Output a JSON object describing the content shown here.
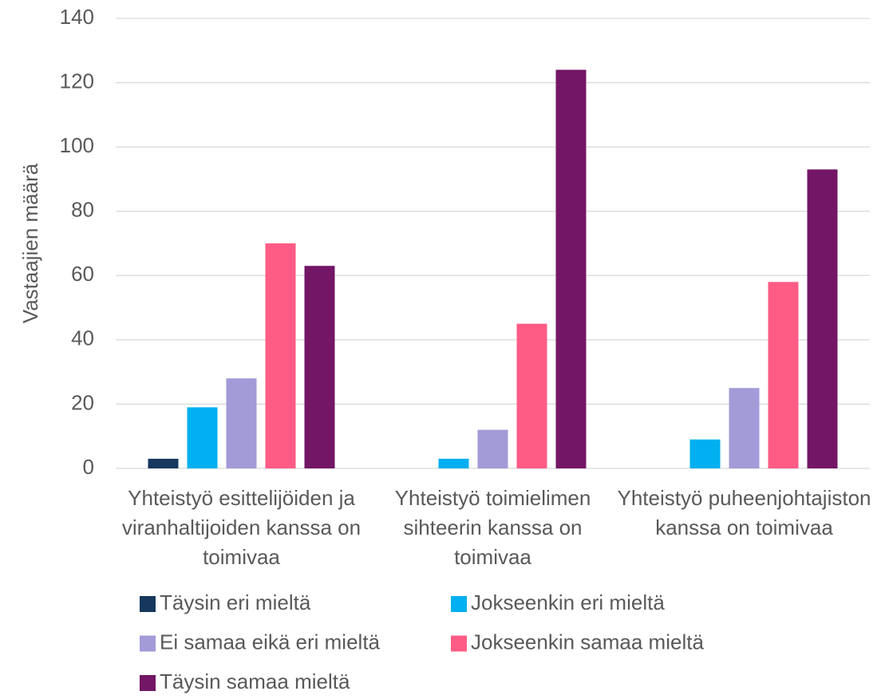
{
  "chart_data": {
    "type": "bar",
    "y_label": "Vastaajien määrä",
    "categories": [
      "Yhteistyö esittelijöiden ja viranhaltijoiden kanssa on toimivaa",
      "Yhteistyö toimielimen sihteerin kanssa on toimivaa",
      "Yhteistyö puheenjohtajiston kanssa on toimivaa"
    ],
    "series": [
      {
        "name": "Täysin eri mieltä",
        "color": "#17375e",
        "values": [
          3,
          0,
          0
        ]
      },
      {
        "name": "Jokseenkin eri mieltä",
        "color": "#00b0f0",
        "values": [
          19,
          3,
          9
        ]
      },
      {
        "name": "Ei samaa eikä eri mieltä",
        "color": "#a29bd8",
        "values": [
          28,
          12,
          25
        ]
      },
      {
        "name": "Jokseenkin samaa mieltä",
        "color": "#ff5c85",
        "values": [
          70,
          45,
          58
        ]
      },
      {
        "name": "Täysin samaa mieltä",
        "color": "#731665",
        "values": [
          63,
          124,
          93
        ]
      }
    ],
    "ylim": [
      0,
      140
    ],
    "yticks": [
      0,
      20,
      40,
      60,
      80,
      100,
      120,
      140
    ],
    "grid": true,
    "legend": "bottom"
  }
}
